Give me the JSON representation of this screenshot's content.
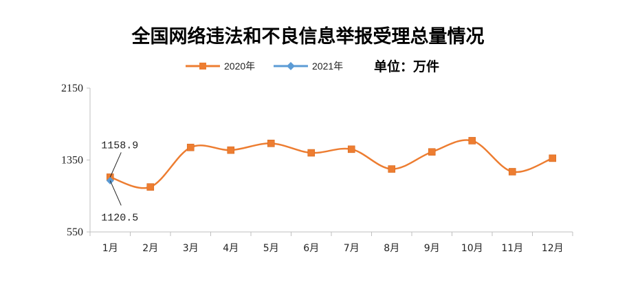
{
  "chart_data": {
    "type": "line",
    "title": "全国网络违法和不良信息举报受理总量情况",
    "unit": "单位：万件",
    "categories": [
      "1月",
      "2月",
      "3月",
      "4月",
      "5月",
      "6月",
      "7月",
      "8月",
      "9月",
      "10月",
      "11月",
      "12月"
    ],
    "ylim": [
      550,
      2150
    ],
    "yticks": [
      "550",
      "1350",
      "2150"
    ],
    "series": [
      {
        "name": "2020年",
        "color": "#ed7d31",
        "marker": "square",
        "values": [
          1158.9,
          1050,
          1490,
          1460,
          1535,
          1430,
          1470,
          1250,
          1440,
          1565,
          1220,
          1370
        ]
      },
      {
        "name": "2021年",
        "color": "#5b9bd5",
        "marker": "diamond",
        "values": [
          1120.5,
          null,
          null,
          null,
          null,
          null,
          null,
          null,
          null,
          null,
          null,
          null
        ]
      }
    ],
    "annotations": [
      {
        "text": "1158.9",
        "series": 0,
        "index": 0
      },
      {
        "text": "1120.5",
        "series": 1,
        "index": 0
      }
    ],
    "legend_position": "top"
  }
}
